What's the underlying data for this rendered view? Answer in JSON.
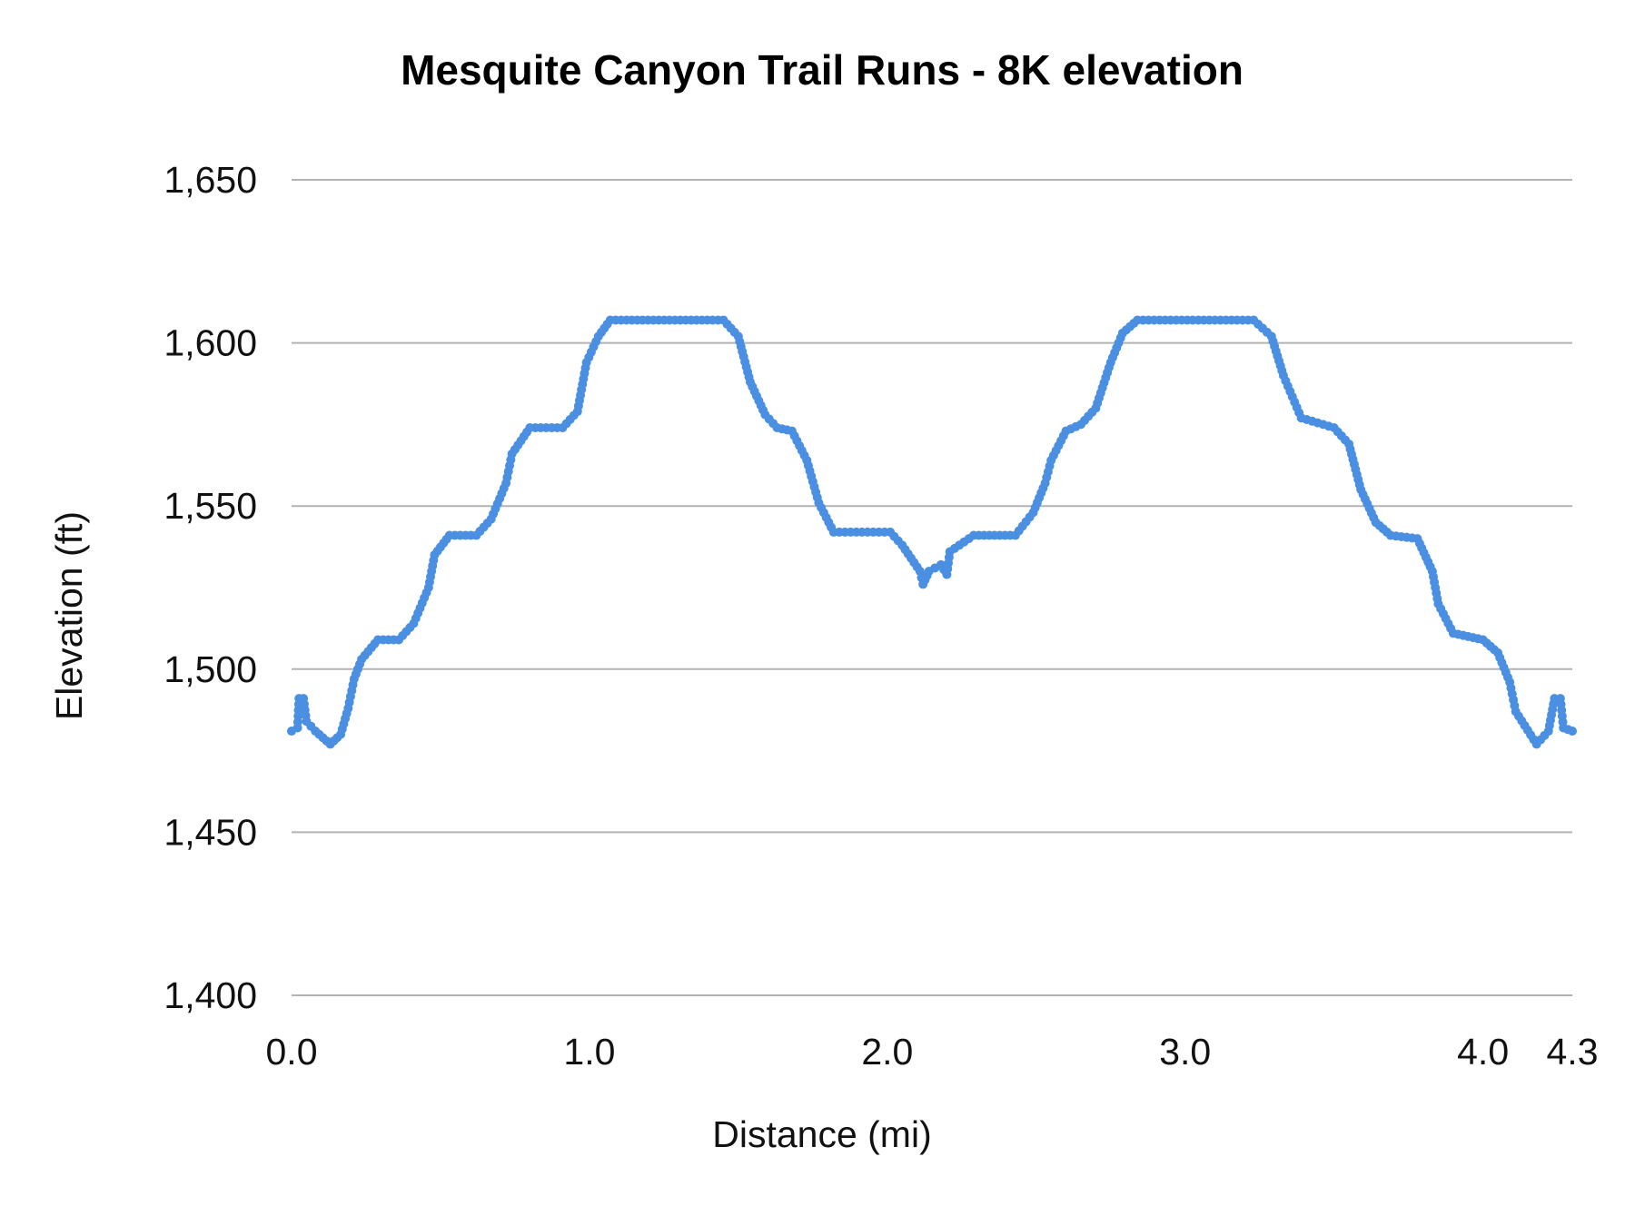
{
  "chart_data": {
    "type": "line",
    "title": "Mesquite Canyon Trail Runs - 8K elevation",
    "xlabel": "Distance (mi)",
    "ylabel": "Elevation (ft)",
    "xlim": [
      0,
      4.3
    ],
    "ylim": [
      1400,
      1650
    ],
    "x_ticks": [
      "0.0",
      "1.0",
      "2.0",
      "3.0",
      "4.0",
      "4.3"
    ],
    "x_tick_values": [
      0,
      1,
      2,
      3,
      4,
      4.3
    ],
    "y_ticks": [
      "1,400",
      "1,450",
      "1,500",
      "1,550",
      "1,600",
      "1,650"
    ],
    "y_tick_values": [
      1400,
      1450,
      1500,
      1550,
      1600,
      1650
    ],
    "grid": "horizontal",
    "legend": "none",
    "color": "#4a8fe2",
    "markers": true,
    "series": [
      {
        "x": [
          0,
          0.02,
          0.025,
          0.04,
          0.05,
          0.08,
          0.13,
          0.165,
          0.19,
          0.21,
          0.235,
          0.29,
          0.36,
          0.41,
          0.46,
          0.48,
          0.53,
          0.62,
          0.67,
          0.72,
          0.74,
          0.8,
          0.91,
          0.96,
          0.99,
          1.03,
          1.07,
          1.45,
          1.5,
          1.54,
          1.59,
          1.63,
          1.68,
          1.73,
          1.77,
          1.82,
          2.01,
          2.05,
          2.11,
          2.12,
          2.14,
          2.18,
          2.2,
          2.21,
          2.29,
          2.43,
          2.49,
          2.53,
          2.55,
          2.6,
          2.65,
          2.7,
          2.75,
          2.79,
          2.84,
          3.23,
          3.29,
          3.33,
          3.39,
          3.5,
          3.55,
          3.59,
          3.64,
          3.69,
          3.78,
          3.83,
          3.85,
          3.9,
          4.0,
          4.05,
          4.09,
          4.11,
          4.18,
          4.22,
          4.24,
          4.26,
          4.27,
          4.3
        ],
        "y": [
          1481,
          1482,
          1491,
          1491,
          1484,
          1481,
          1477,
          1480,
          1488,
          1497,
          1503,
          1509,
          1509,
          1514,
          1525,
          1535,
          1541,
          1541,
          1546,
          1557,
          1566,
          1574,
          1574,
          1579,
          1594,
          1602,
          1607,
          1607,
          1602,
          1588,
          1578,
          1574,
          1573,
          1564,
          1551,
          1542,
          1542,
          1538,
          1530,
          1526,
          1530,
          1532,
          1529,
          1536,
          1541,
          1541,
          1548,
          1557,
          1564,
          1573,
          1575,
          1580,
          1594,
          1603,
          1607,
          1607,
          1602,
          1590,
          1577,
          1574,
          1569,
          1555,
          1545,
          1541,
          1540,
          1530,
          1520,
          1511,
          1509,
          1505,
          1496,
          1487,
          1477,
          1481,
          1491,
          1491,
          1482,
          1481
        ]
      }
    ]
  }
}
